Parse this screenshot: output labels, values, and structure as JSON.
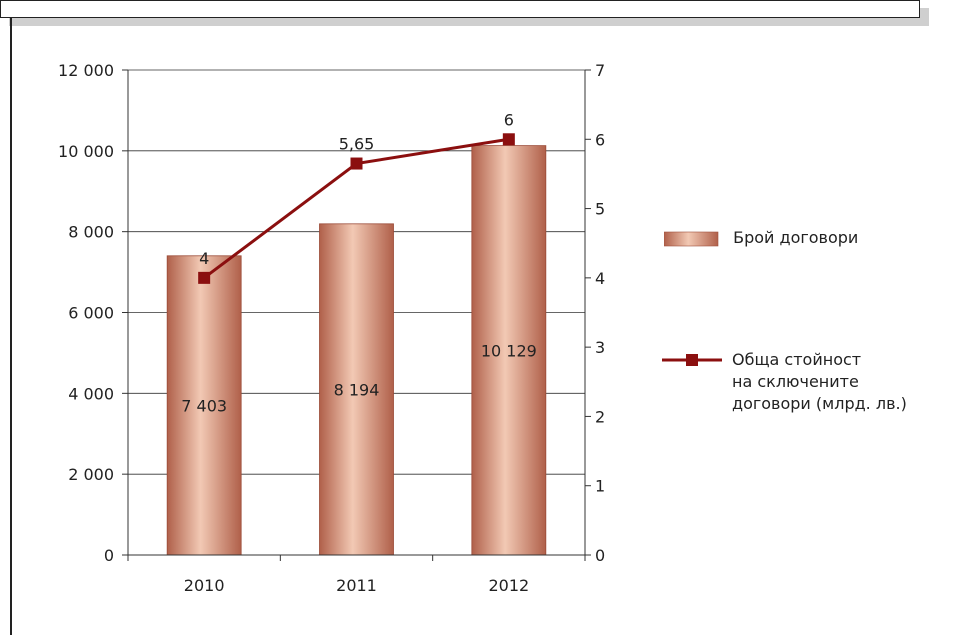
{
  "chart_data": {
    "type": "bar+line",
    "categories": [
      "2010",
      "2011",
      "2012"
    ],
    "bar_series": {
      "name": "Брой договори",
      "values": [
        7403,
        8194,
        10129
      ],
      "labels": [
        "7 403",
        "8 194",
        "10 129"
      ],
      "color": "#c1705a"
    },
    "line_series": {
      "name": "Обща стойност на сключените договори (млрд. лв.)",
      "name_lines": [
        "Обща стойност",
        "на сключените",
        "договори (млрд. лв.)"
      ],
      "values": [
        4,
        5.65,
        6
      ],
      "labels": [
        "4",
        "5,65",
        "6"
      ],
      "color": "#8b0f0f"
    },
    "y_left": {
      "lim": [
        0,
        12000
      ],
      "ticks": [
        0,
        2000,
        4000,
        6000,
        8000,
        10000,
        12000
      ],
      "tick_labels": [
        "0",
        "2 000",
        "4 000",
        "6 000",
        "8 000",
        "10 000",
        "12 000"
      ]
    },
    "y_right": {
      "lim": [
        0,
        7
      ],
      "ticks": [
        0,
        1,
        2,
        3,
        4,
        5,
        6,
        7
      ],
      "tick_labels": [
        "0",
        "1",
        "2",
        "3",
        "4",
        "5",
        "6",
        "7"
      ]
    },
    "grid": "horizontal",
    "legend_position": "right"
  }
}
